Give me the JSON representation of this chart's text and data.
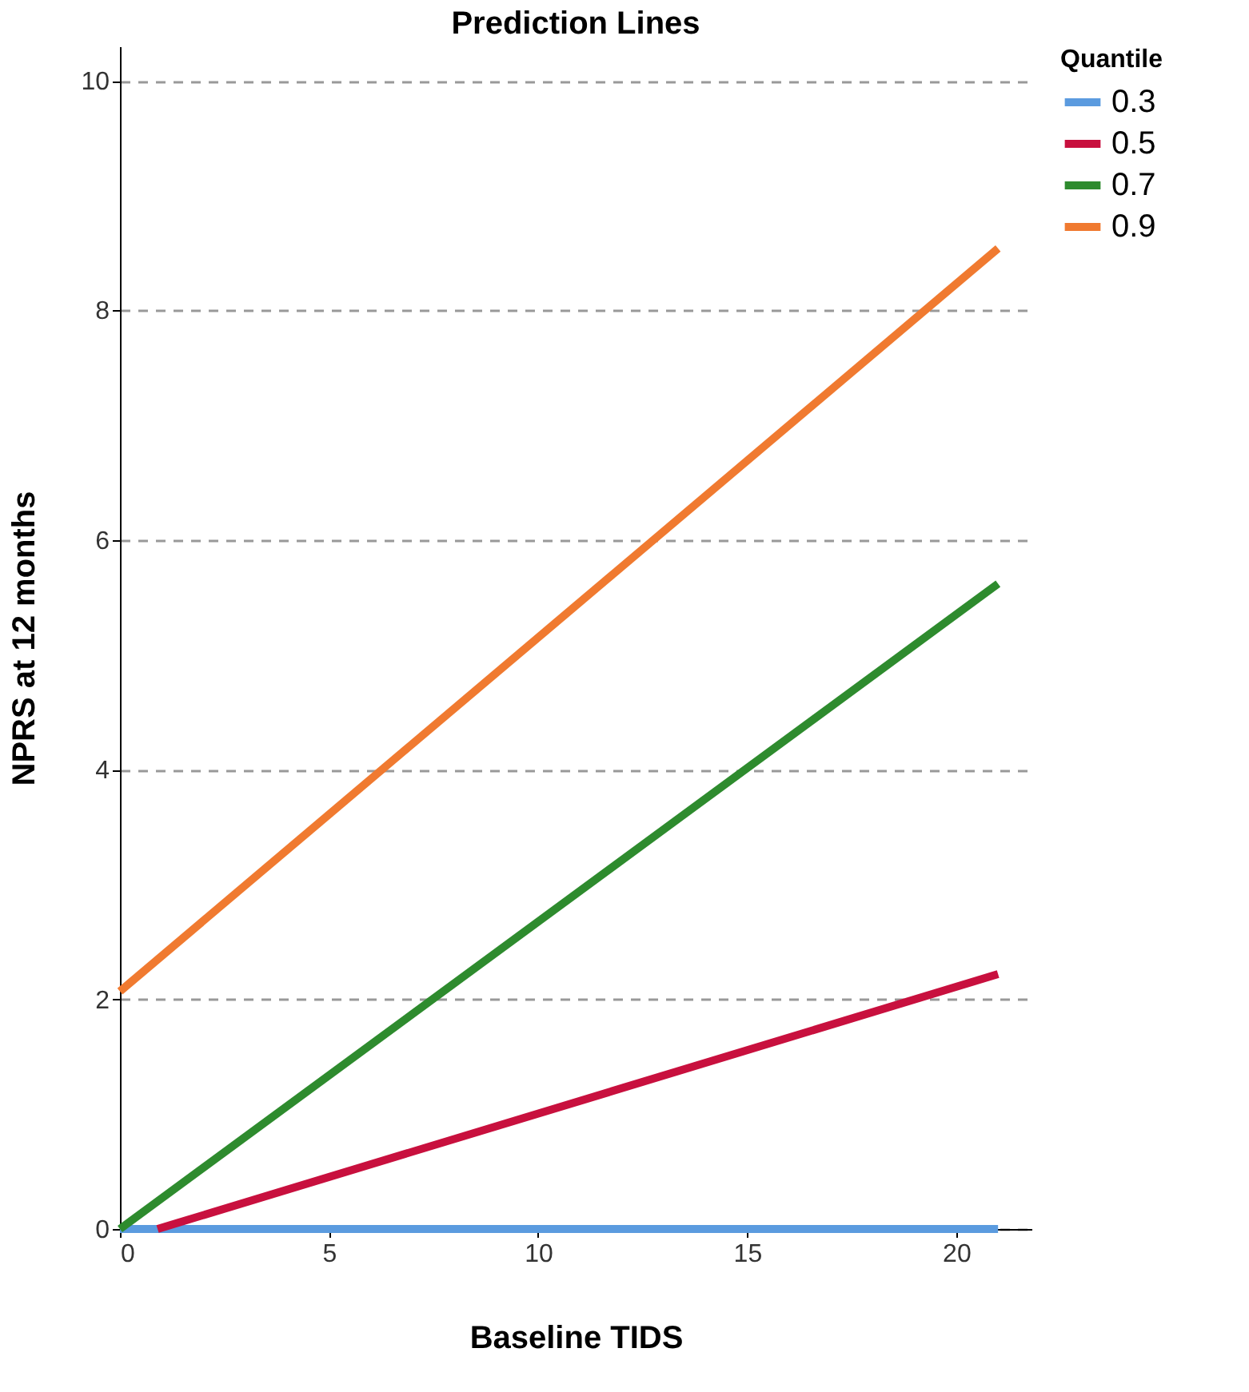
{
  "chart_data": {
    "type": "line",
    "title": "Prediction Lines",
    "xlabel": "Baseline TIDS",
    "ylabel": "NPRS at 12 months",
    "legend_title": "Quantile",
    "xlim": [
      0,
      21.8
    ],
    "xticks": [
      0,
      5,
      10,
      15,
      20
    ],
    "ylim": [
      0,
      10.3
    ],
    "yticks": [
      0,
      2,
      4,
      6,
      8,
      10
    ],
    "grid": "y",
    "legend": "top right",
    "marker": "none",
    "line_style": "solid",
    "series": [
      {
        "name": "0.3",
        "color": "#5b9bdf",
        "x": [
          0,
          21
        ],
        "values": [
          0,
          0
        ]
      },
      {
        "name": "0.5",
        "color": "#c8103e",
        "x": [
          0.9,
          21
        ],
        "values": [
          0,
          2.22
        ]
      },
      {
        "name": "0.7",
        "color": "#2e8b2e",
        "x": [
          0,
          21
        ],
        "values": [
          0,
          5.62
        ]
      },
      {
        "name": "0.9",
        "color": "#f07a30",
        "x": [
          0,
          21
        ],
        "values": [
          2.07,
          8.54
        ]
      }
    ]
  }
}
